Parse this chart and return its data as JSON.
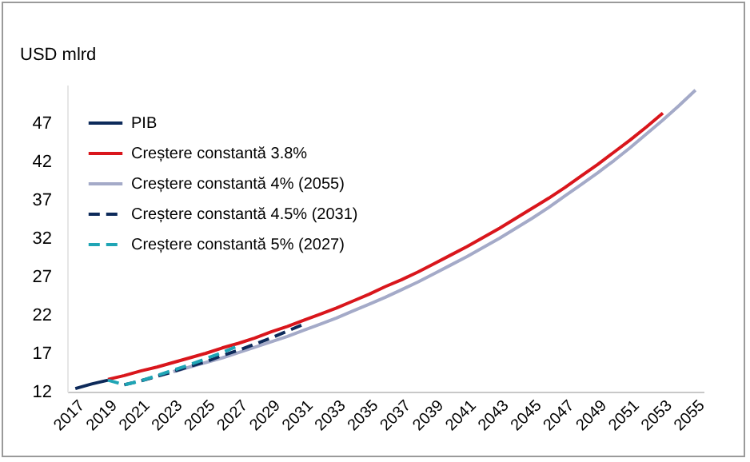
{
  "chart_data": {
    "type": "line",
    "ylabel": "USD mlrd",
    "xlim": [
      2016.5,
      2055.5
    ],
    "ylim": [
      12,
      52
    ],
    "xticks": [
      2017,
      2019,
      2021,
      2023,
      2025,
      2027,
      2029,
      2031,
      2033,
      2035,
      2037,
      2039,
      2041,
      2043,
      2045,
      2047,
      2049,
      2051,
      2053,
      2055
    ],
    "yticks": [
      12,
      17,
      22,
      27,
      32,
      37,
      42,
      47
    ],
    "legend": "top left",
    "series": [
      {
        "name": "PIB",
        "color": "#0d2a5a",
        "line_style": "solid",
        "x": [
          2017,
          2018,
          2019
        ],
        "values": [
          12.4,
          13.0,
          13.5
        ]
      },
      {
        "name": "Creștere constantă 3.8%",
        "color": "#d9161c",
        "line_style": "solid",
        "x": [
          2019,
          2020,
          2021,
          2022,
          2023,
          2024,
          2025,
          2026,
          2027,
          2028,
          2029,
          2030,
          2031,
          2032,
          2033,
          2034,
          2035,
          2036,
          2037,
          2038,
          2039,
          2040,
          2041,
          2042,
          2043,
          2044,
          2045,
          2046,
          2047,
          2048,
          2049,
          2050,
          2051,
          2052,
          2053
        ],
        "values": [
          13.6,
          14.1,
          14.7,
          15.2,
          15.8,
          16.4,
          17.0,
          17.7,
          18.3,
          19.0,
          19.8,
          20.5,
          21.3,
          22.1,
          22.9,
          23.8,
          24.7,
          25.7,
          26.6,
          27.6,
          28.7,
          29.8,
          30.9,
          32.1,
          33.3,
          34.6,
          35.9,
          37.2,
          38.6,
          40.1,
          41.6,
          43.2,
          44.8,
          46.5,
          48.3
        ]
      },
      {
        "name": "Creștere constantă 4% (2055)",
        "color": "#a4aac8",
        "line_style": "solid",
        "x": [
          2023,
          2024,
          2025,
          2026,
          2027,
          2028,
          2029,
          2030,
          2031,
          2032,
          2033,
          2034,
          2035,
          2036,
          2037,
          2038,
          2039,
          2040,
          2041,
          2042,
          2043,
          2044,
          2045,
          2046,
          2047,
          2048,
          2049,
          2050,
          2051,
          2052,
          2053,
          2054,
          2055
        ],
        "values": [
          14.6,
          15.2,
          15.8,
          16.4,
          17.1,
          17.8,
          18.5,
          19.2,
          20.0,
          20.8,
          21.6,
          22.5,
          23.4,
          24.3,
          25.3,
          26.3,
          27.4,
          28.5,
          29.6,
          30.8,
          32.0,
          33.3,
          34.6,
          36.0,
          37.5,
          39.0,
          40.5,
          42.1,
          43.8,
          45.6,
          47.4,
          49.3,
          51.3
        ]
      },
      {
        "name": "Creștere constantă 4.5% (2031)",
        "color": "#0d2a5a",
        "line_style": "dashed",
        "x": [
          2020,
          2021,
          2022,
          2023,
          2024,
          2025,
          2026,
          2027,
          2028,
          2029,
          2030,
          2031
        ],
        "values": [
          12.9,
          13.4,
          14.0,
          14.6,
          15.3,
          15.9,
          16.7,
          17.4,
          18.2,
          19.0,
          19.9,
          20.8
        ]
      },
      {
        "name": "Creștere constantă 5% (2027)",
        "color": "#1fa5b5",
        "line_style": "dashed",
        "x": [
          2019,
          2020,
          2021,
          2022,
          2023,
          2024,
          2025,
          2026,
          2027
        ],
        "values": [
          13.5,
          12.9,
          13.4,
          14.1,
          14.8,
          15.5,
          16.3,
          17.1,
          18.0
        ]
      }
    ]
  }
}
